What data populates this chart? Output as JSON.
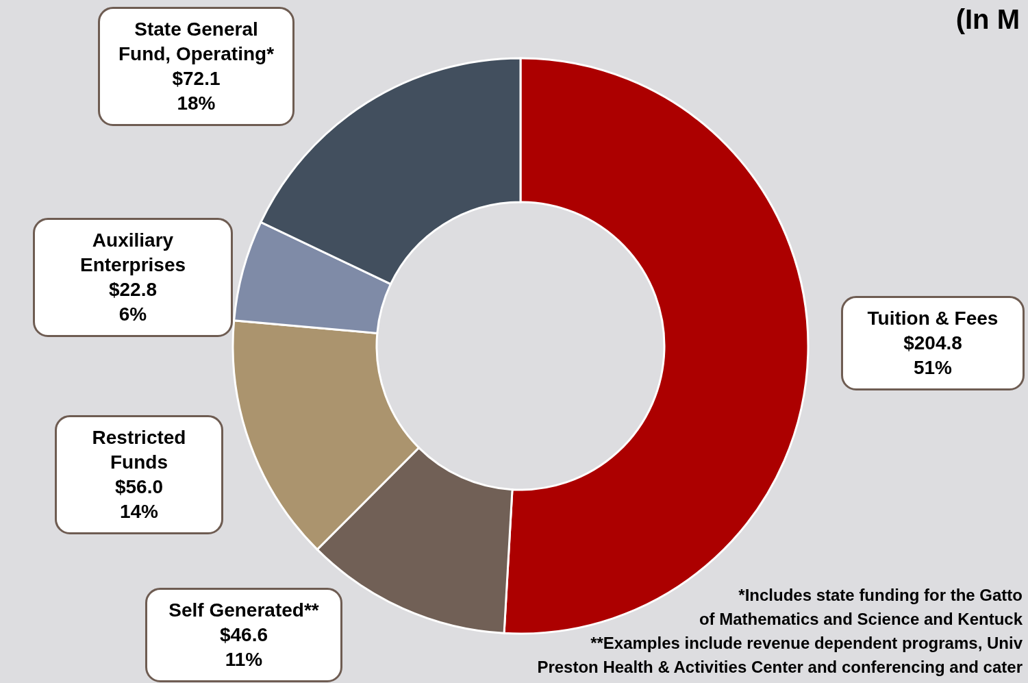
{
  "chart_data": {
    "type": "donut",
    "title": "(In M",
    "categories": [
      "Tuition & Fees",
      "Self Generated**",
      "Restricted Funds",
      "Auxiliary Enterprises",
      "State General Fund, Operating*"
    ],
    "values": [
      204.8,
      46.6,
      56.0,
      22.8,
      72.1
    ],
    "value_labels": [
      "$204.8\n51%",
      "$46.6\n11%",
      "$56.0\n14%",
      "$22.8\n6%",
      "$72.1\n18%"
    ],
    "colors": [
      "#ac0000",
      "#716056",
      "#ab946e",
      "#7f8ba7",
      "#424f5e"
    ],
    "legend": false,
    "annotations": [
      "*Includes state funding for the Gatto",
      "of Mathematics and Science and Kentuck",
      "**Examples include revenue dependent programs, Univ",
      "Preston Health & Activities Center and conferencing and cater"
    ]
  }
}
